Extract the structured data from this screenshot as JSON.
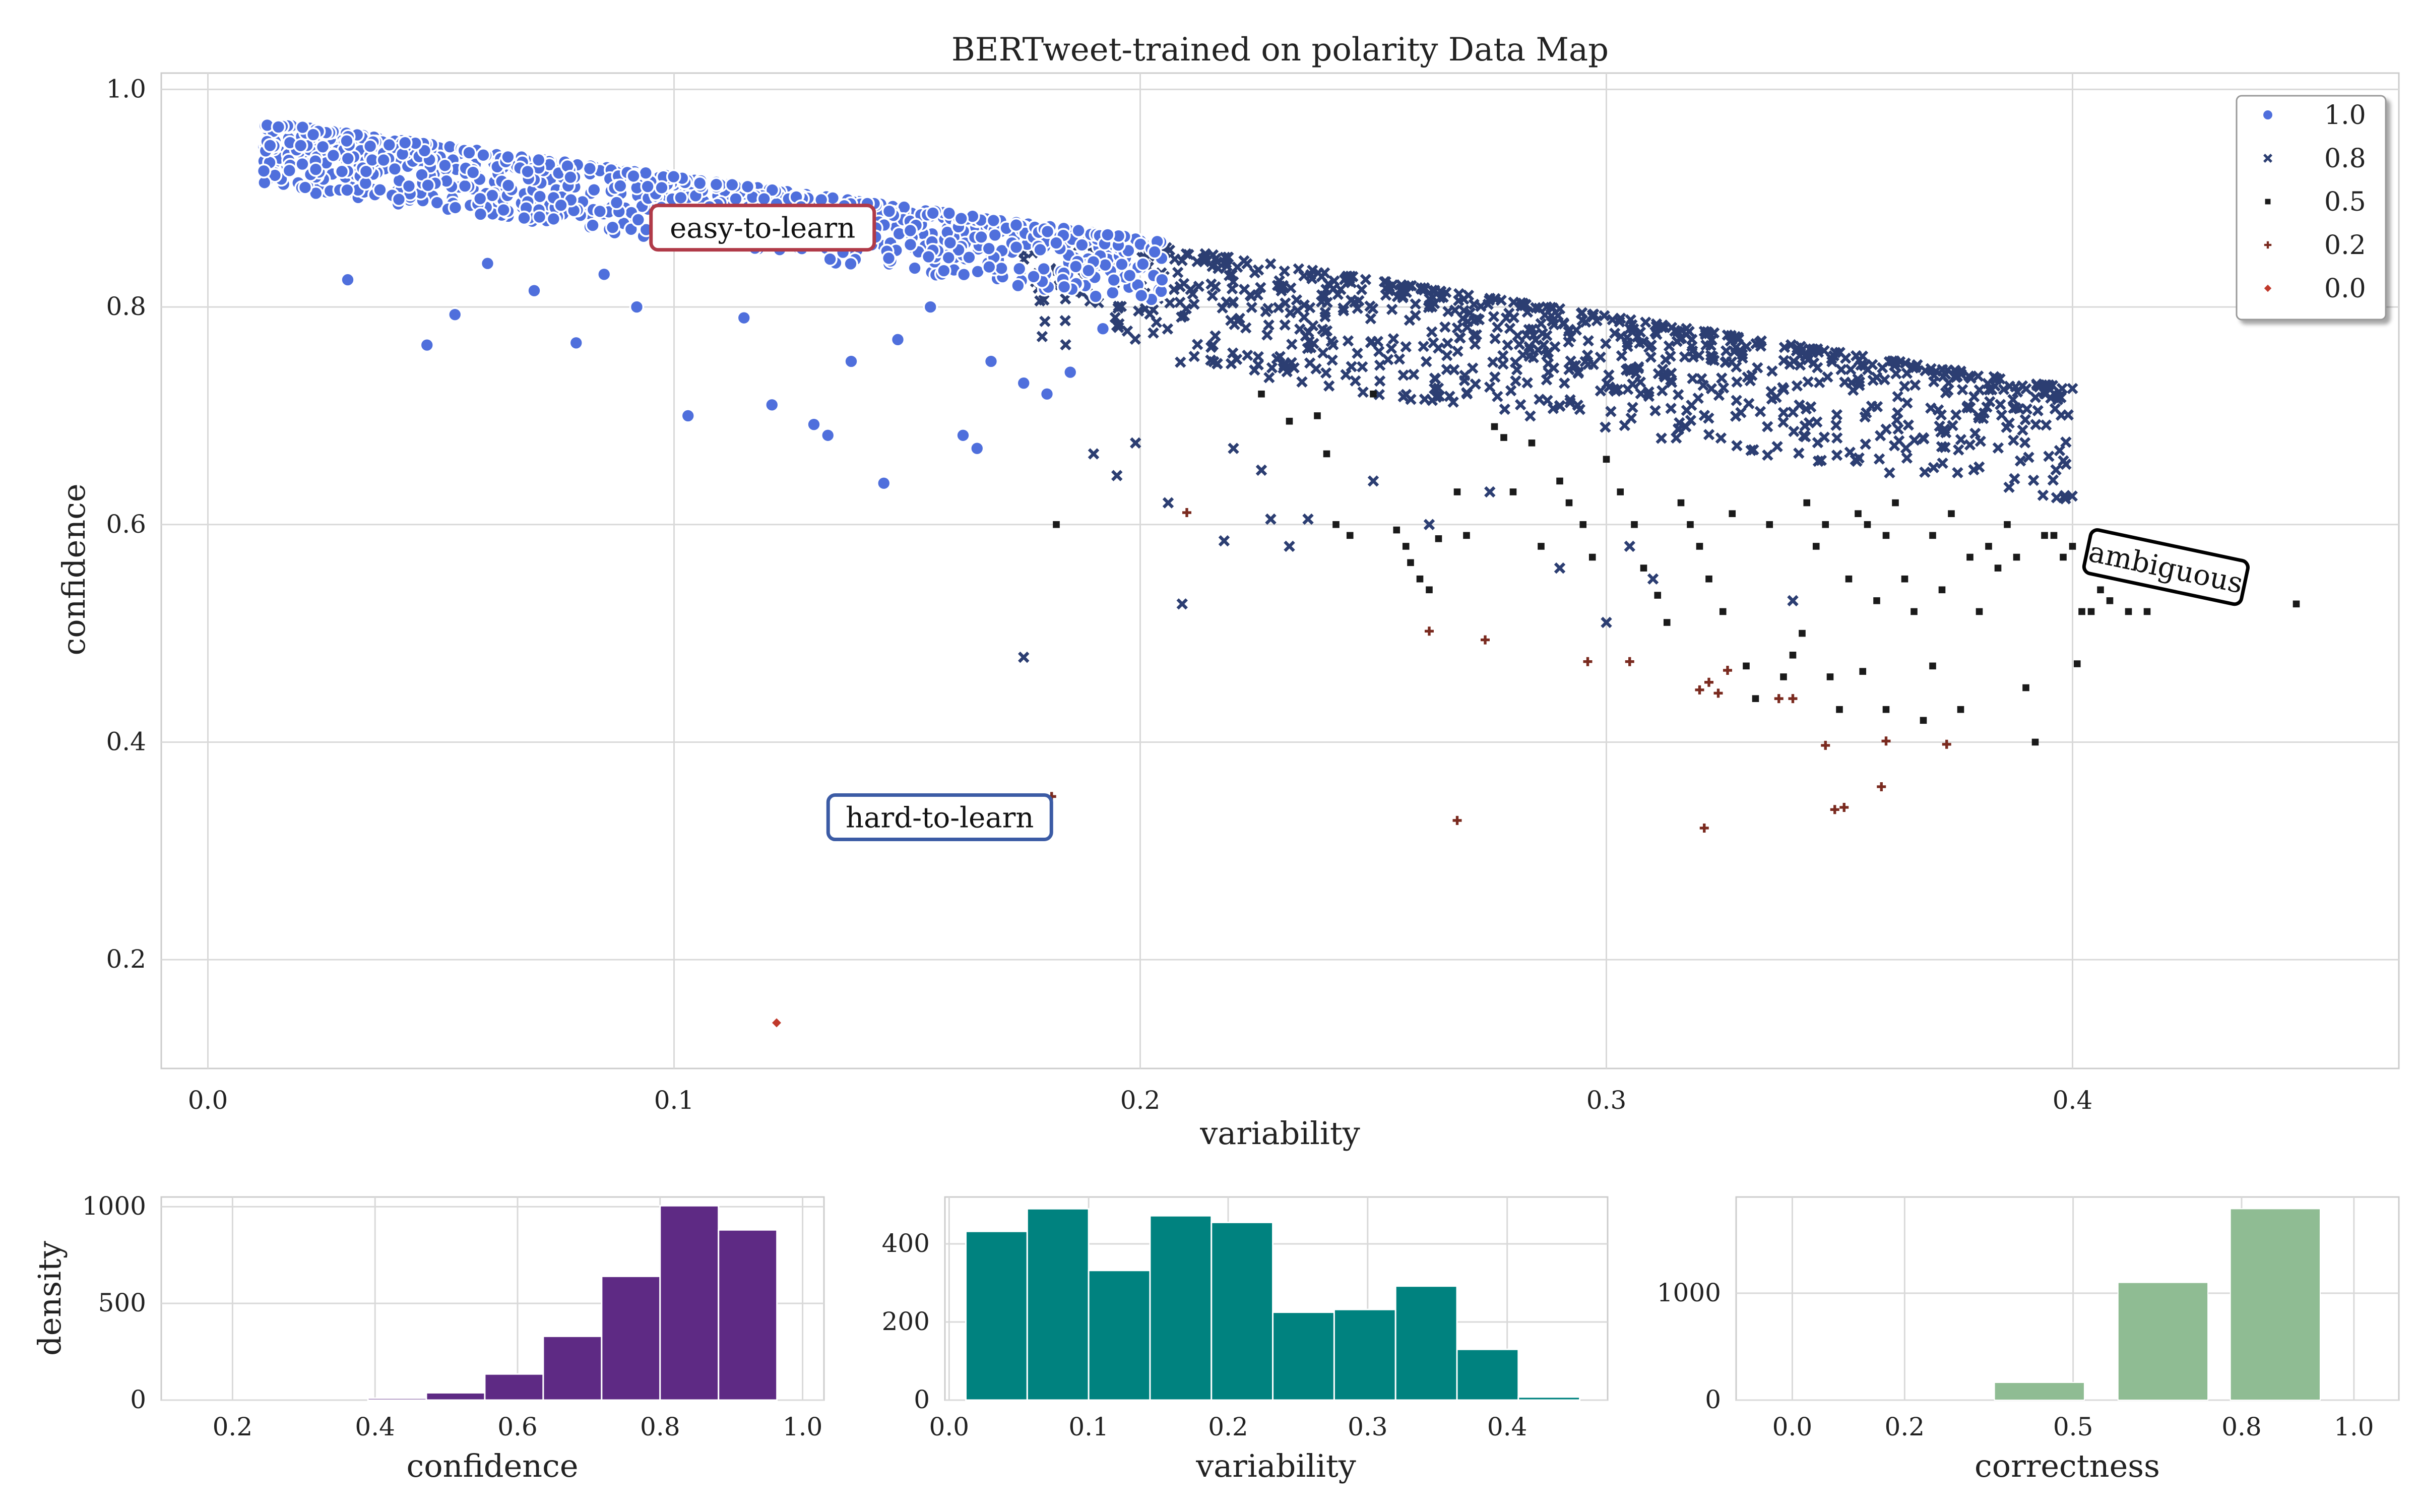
{
  "chart_data": [
    {
      "id": "main-scatter",
      "type": "scatter",
      "title": "BERTweet-trained on polarity Data Map",
      "xlabel": "variability",
      "ylabel": "confidence",
      "xlim": [
        -0.01,
        0.47
      ],
      "ylim": [
        0.1,
        1.015
      ],
      "xticks": [
        0.0,
        0.1,
        0.2,
        0.3,
        0.4
      ],
      "yticks": [
        0.2,
        0.4,
        0.6,
        0.8,
        1.0
      ],
      "xtick_labels": [
        "0.0",
        "0.1",
        "0.2",
        "0.3",
        "0.4"
      ],
      "ytick_labels": [
        "0.2",
        "0.4",
        "0.6",
        "0.8",
        "1.0"
      ],
      "grid": true,
      "legend_position": "top-right",
      "legend": [
        {
          "label": "1.0",
          "marker": "circle",
          "color": "#4f6fdc"
        },
        {
          "label": "0.8",
          "marker": "x",
          "color": "#2c3e72"
        },
        {
          "label": "0.5",
          "marker": "square",
          "color": "#1a1a1a"
        },
        {
          "label": "0.2",
          "marker": "plus",
          "color": "#7a2a1f"
        },
        {
          "label": "0.0",
          "marker": "diamond",
          "color": "#c0392b"
        }
      ],
      "annotations": [
        {
          "text": "easy-to-learn",
          "x": 0.119,
          "y": 0.872,
          "rotation": 0,
          "border_color": "#b03a48"
        },
        {
          "text": "hard-to-learn",
          "x": 0.157,
          "y": 0.33,
          "rotation": 0,
          "border_color": "#3b5ba5"
        },
        {
          "text": "ambiguous",
          "x": 0.42,
          "y": 0.56,
          "rotation": 12,
          "border_color": "#000000"
        }
      ],
      "series": [
        {
          "name": "1.0",
          "marker": "circle",
          "color": "#4f6fdc",
          "band": {
            "x0": 0.012,
            "x1": 0.205,
            "y_at_x0": 0.955,
            "y_at_x1": 0.845,
            "upper_offset": 0.015,
            "lower_offset": 0.045,
            "count": 1100
          },
          "points": [
            [
              0.012,
              0.925
            ],
            [
              0.03,
              0.825
            ],
            [
              0.047,
              0.765
            ],
            [
              0.053,
              0.793
            ],
            [
              0.079,
              0.767
            ],
            [
              0.103,
              0.7
            ],
            [
              0.121,
              0.71
            ],
            [
              0.13,
              0.692
            ],
            [
              0.133,
              0.682
            ],
            [
              0.145,
              0.638
            ],
            [
              0.162,
              0.682
            ],
            [
              0.165,
              0.67
            ],
            [
              0.168,
              0.75
            ],
            [
              0.175,
              0.73
            ],
            [
              0.18,
              0.72
            ],
            [
              0.185,
              0.74
            ],
            [
              0.192,
              0.78
            ],
            [
              0.148,
              0.77
            ],
            [
              0.138,
              0.75
            ],
            [
              0.115,
              0.79
            ],
            [
              0.092,
              0.8
            ],
            [
              0.07,
              0.815
            ],
            [
              0.06,
              0.84
            ],
            [
              0.085,
              0.83
            ],
            [
              0.155,
              0.8
            ]
          ]
        },
        {
          "name": "0.8",
          "marker": "x",
          "color": "#2c3e72",
          "band": {
            "x0": 0.175,
            "x1": 0.4,
            "y_at_x0": 0.86,
            "y_at_x1": 0.71,
            "upper_offset": 0.015,
            "lower_offset": 0.09,
            "count": 900
          },
          "points": [
            [
              0.175,
              0.478
            ],
            [
              0.209,
              0.527
            ],
            [
              0.218,
              0.585
            ],
            [
              0.206,
              0.62
            ],
            [
              0.228,
              0.605
            ],
            [
              0.232,
              0.58
            ],
            [
              0.236,
              0.605
            ],
            [
              0.19,
              0.665
            ],
            [
              0.195,
              0.645
            ],
            [
              0.199,
              0.675
            ],
            [
              0.262,
              0.6
            ],
            [
              0.29,
              0.56
            ],
            [
              0.3,
              0.51
            ],
            [
              0.31,
              0.55
            ],
            [
              0.34,
              0.53
            ],
            [
              0.305,
              0.58
            ],
            [
              0.275,
              0.63
            ],
            [
              0.25,
              0.64
            ],
            [
              0.226,
              0.65
            ],
            [
              0.22,
              0.67
            ]
          ]
        },
        {
          "name": "0.5",
          "marker": "square",
          "color": "#1a1a1a",
          "points": [
            [
              0.182,
              0.6
            ],
            [
              0.226,
              0.72
            ],
            [
              0.232,
              0.695
            ],
            [
              0.238,
              0.7
            ],
            [
              0.24,
              0.665
            ],
            [
              0.242,
              0.6
            ],
            [
              0.245,
              0.59
            ],
            [
              0.25,
              0.72
            ],
            [
              0.255,
              0.595
            ],
            [
              0.257,
              0.58
            ],
            [
              0.258,
              0.565
            ],
            [
              0.26,
              0.55
            ],
            [
              0.262,
              0.54
            ],
            [
              0.264,
              0.587
            ],
            [
              0.268,
              0.63
            ],
            [
              0.27,
              0.59
            ],
            [
              0.276,
              0.69
            ],
            [
              0.278,
              0.68
            ],
            [
              0.28,
              0.63
            ],
            [
              0.284,
              0.675
            ],
            [
              0.286,
              0.58
            ],
            [
              0.29,
              0.64
            ],
            [
              0.292,
              0.62
            ],
            [
              0.295,
              0.6
            ],
            [
              0.297,
              0.57
            ],
            [
              0.3,
              0.66
            ],
            [
              0.303,
              0.63
            ],
            [
              0.306,
              0.6
            ],
            [
              0.308,
              0.56
            ],
            [
              0.311,
              0.535
            ],
            [
              0.313,
              0.51
            ],
            [
              0.316,
              0.62
            ],
            [
              0.318,
              0.6
            ],
            [
              0.32,
              0.58
            ],
            [
              0.322,
              0.55
            ],
            [
              0.325,
              0.52
            ],
            [
              0.327,
              0.61
            ],
            [
              0.33,
              0.47
            ],
            [
              0.332,
              0.44
            ],
            [
              0.335,
              0.6
            ],
            [
              0.338,
              0.46
            ],
            [
              0.34,
              0.48
            ],
            [
              0.342,
              0.5
            ],
            [
              0.343,
              0.62
            ],
            [
              0.345,
              0.58
            ],
            [
              0.347,
              0.6
            ],
            [
              0.348,
              0.46
            ],
            [
              0.35,
              0.43
            ],
            [
              0.352,
              0.55
            ],
            [
              0.354,
              0.61
            ],
            [
              0.356,
              0.6
            ],
            [
              0.358,
              0.53
            ],
            [
              0.36,
              0.59
            ],
            [
              0.362,
              0.62
            ],
            [
              0.364,
              0.55
            ],
            [
              0.366,
              0.52
            ],
            [
              0.368,
              0.42
            ],
            [
              0.37,
              0.59
            ],
            [
              0.372,
              0.54
            ],
            [
              0.374,
              0.61
            ],
            [
              0.376,
              0.43
            ],
            [
              0.378,
              0.57
            ],
            [
              0.38,
              0.52
            ],
            [
              0.382,
              0.58
            ],
            [
              0.384,
              0.56
            ],
            [
              0.386,
              0.6
            ],
            [
              0.388,
              0.57
            ],
            [
              0.39,
              0.45
            ],
            [
              0.392,
              0.4
            ],
            [
              0.394,
              0.59
            ],
            [
              0.396,
              0.59
            ],
            [
              0.4,
              0.58
            ],
            [
              0.402,
              0.52
            ],
            [
              0.404,
              0.52
            ],
            [
              0.406,
              0.54
            ],
            [
              0.408,
              0.53
            ],
            [
              0.41,
              0.58
            ],
            [
              0.412,
              0.52
            ],
            [
              0.416,
              0.52
            ],
            [
              0.448,
              0.527
            ],
            [
              0.401,
              0.472
            ],
            [
              0.398,
              0.57
            ],
            [
              0.36,
              0.43
            ],
            [
              0.355,
              0.465
            ],
            [
              0.37,
              0.47
            ]
          ]
        },
        {
          "name": "0.2",
          "marker": "plus",
          "color": "#7a2a1f",
          "points": [
            [
              0.181,
              0.35
            ],
            [
              0.21,
              0.611
            ],
            [
              0.262,
              0.502
            ],
            [
              0.274,
              0.494
            ],
            [
              0.268,
              0.328
            ],
            [
              0.296,
              0.474
            ],
            [
              0.305,
              0.474
            ],
            [
              0.32,
              0.448
            ],
            [
              0.322,
              0.455
            ],
            [
              0.324,
              0.445
            ],
            [
              0.326,
              0.466
            ],
            [
              0.337,
              0.44
            ],
            [
              0.34,
              0.44
            ],
            [
              0.347,
              0.397
            ],
            [
              0.349,
              0.338
            ],
            [
              0.351,
              0.34
            ],
            [
              0.359,
              0.359
            ],
            [
              0.36,
              0.401
            ],
            [
              0.373,
              0.398
            ],
            [
              0.321,
              0.321
            ]
          ]
        },
        {
          "name": "0.0",
          "marker": "diamond",
          "color": "#c0392b",
          "points": [
            [
              0.122,
              0.142
            ]
          ]
        }
      ]
    },
    {
      "id": "confidence-hist",
      "type": "bar",
      "title": "",
      "xlabel": "confidence",
      "ylabel": "density",
      "xlim": [
        0.1,
        1.03
      ],
      "ylim": [
        0,
        1050
      ],
      "xticks": [
        0.2,
        0.4,
        0.6,
        0.8,
        1.0
      ],
      "xtick_labels": [
        "0.2",
        "0.4",
        "0.6",
        "0.8",
        "1.0"
      ],
      "yticks": [
        0,
        500,
        1000
      ],
      "ytick_labels": [
        "0",
        "500",
        "1000"
      ],
      "color": "#5e2a84",
      "bin_edges": [
        0.39,
        0.472,
        0.554,
        0.636,
        0.718,
        0.8,
        0.882,
        0.964
      ],
      "values": [
        10,
        38,
        135,
        330,
        640,
        1005,
        880
      ]
    },
    {
      "id": "variability-hist",
      "type": "bar",
      "title": "",
      "xlabel": "variability",
      "ylabel": "",
      "xlim": [
        -0.003,
        0.472
      ],
      "ylim": [
        0,
        520
      ],
      "xticks": [
        0.0,
        0.1,
        0.2,
        0.3,
        0.4
      ],
      "xtick_labels": [
        "0.0",
        "0.1",
        "0.2",
        "0.3",
        "0.4"
      ],
      "yticks": [
        0,
        200,
        400
      ],
      "ytick_labels": [
        "0",
        "200",
        "400"
      ],
      "color": "#00827f",
      "bin_edges": [
        0.012,
        0.056,
        0.1,
        0.144,
        0.188,
        0.232,
        0.276,
        0.32,
        0.364,
        0.408,
        0.452
      ],
      "values": [
        432,
        490,
        332,
        472,
        455,
        225,
        232,
        292,
        130,
        8
      ]
    },
    {
      "id": "correctness-hist",
      "type": "bar",
      "title": "",
      "xlabel": "correctness",
      "ylabel": "",
      "xlim": [
        -0.1,
        1.08
      ],
      "ylim": [
        0,
        1900
      ],
      "xticks": [
        0.0,
        0.2,
        0.5,
        0.8,
        1.0
      ],
      "xtick_labels": [
        "0.0",
        "0.2",
        "0.5",
        "0.8",
        "1.0"
      ],
      "yticks": [
        0,
        1000
      ],
      "ytick_labels": [
        "0",
        "1000"
      ],
      "color": "#8fbc93",
      "bin_edges": [
        -0.05,
        0.15,
        0.35,
        0.55,
        0.75,
        0.95,
        1.05
      ],
      "values": [
        2,
        6,
        165,
        1100,
        1790,
        0
      ],
      "bars": [
        {
          "x0": 0.36,
          "x1": 0.52,
          "value": 165
        },
        {
          "x0": 0.58,
          "x1": 0.74,
          "value": 1100
        },
        {
          "x0": 0.78,
          "x1": 0.94,
          "value": 1790
        }
      ]
    }
  ]
}
